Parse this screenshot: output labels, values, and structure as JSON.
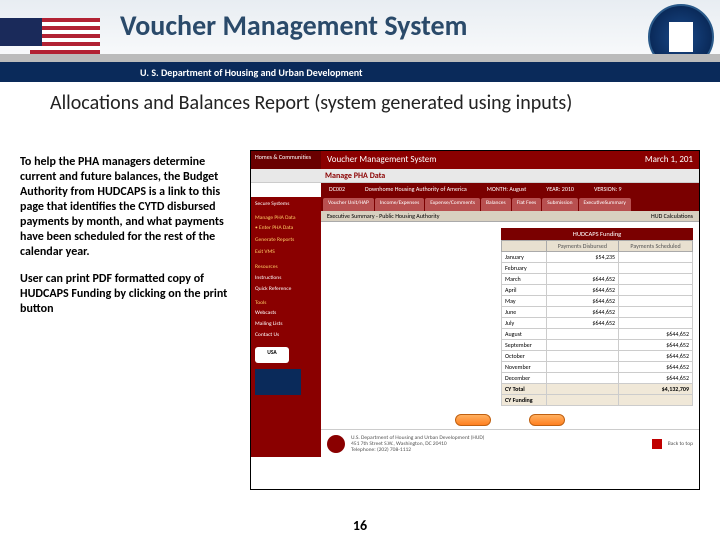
{
  "title": "Voucher Management System",
  "dept_bar": "U. S. Department of Housing and Urban Development",
  "subtitle": "Allocations and Balances Report (system generated using inputs)",
  "para1": "To help the PHA managers determine current and future balances, the Budget Authority from HUDCAPS is a link to this page that identifies the CYTD disbursed payments by month, and what payments have been scheduled for the rest of the calendar year.",
  "para2": "User can print PDF formatted copy of HUDCAPS Funding by clicking on the print button",
  "page_number": "16",
  "screenshot": {
    "top_left": "Homes & Communities",
    "app_title": "Voucher Management System",
    "date": "March 1, 201",
    "page_title": "Manage PHA Data",
    "info": {
      "code": "DC002",
      "name": "Downhome Housing Authority of America",
      "month": "MONTH: August",
      "year": "YEAR: 2010",
      "version": "VERSION: 9"
    },
    "sidebar": {
      "items": [
        "Secure Systems",
        "Manage PHA Data",
        "• Enter PHA Data",
        "Generate Reports",
        "Exit VMS"
      ],
      "resources": "Resources",
      "res_items": [
        "Instructions",
        "Quick Reference"
      ],
      "tools": "Tools",
      "tool_items": [
        "",
        "Webcasts",
        "Mailing Lists",
        "Contact Us"
      ]
    },
    "tabs": [
      "Voucher\nUnit/HAP",
      "Income/Expenses",
      "Expense/Comments",
      "Balances",
      "Flat Fees",
      "Submission",
      "ExecutiveSummary"
    ],
    "subbar_left": "Executive Summary - Public Housing Authority",
    "subbar_right": "HUD Calculations",
    "table": {
      "title": "HUDCAPS Funding",
      "cols": [
        "",
        "Payments Disbursed",
        "Payments Scheduled"
      ],
      "months": [
        "January",
        "February",
        "March",
        "April",
        "May",
        "June",
        "July",
        "August",
        "September",
        "October",
        "November",
        "December"
      ],
      "disb": [
        "$54,235",
        "",
        "$644,652",
        "$644,652",
        "$644,652",
        "$644,652",
        "$644,652",
        "",
        "",
        "",
        "",
        ""
      ],
      "sched": [
        "",
        "",
        "",
        "",
        "",
        "",
        "",
        "$644,652",
        "$644,652",
        "$644,652",
        "$644,652",
        "$644,652"
      ],
      "total_label": "CY Total",
      "total_disb": "",
      "total_sched": "$4,132,709",
      "cyfund_label": "CY Funding",
      "cyfund": ""
    },
    "footer": "U.S. Department of Housing and Urban Development (HUD)",
    "footer2": "451 7th Street S.W., Washington, DC 20410",
    "footer3": "Telephone: (202) 708-1112",
    "back": "Back to top"
  }
}
